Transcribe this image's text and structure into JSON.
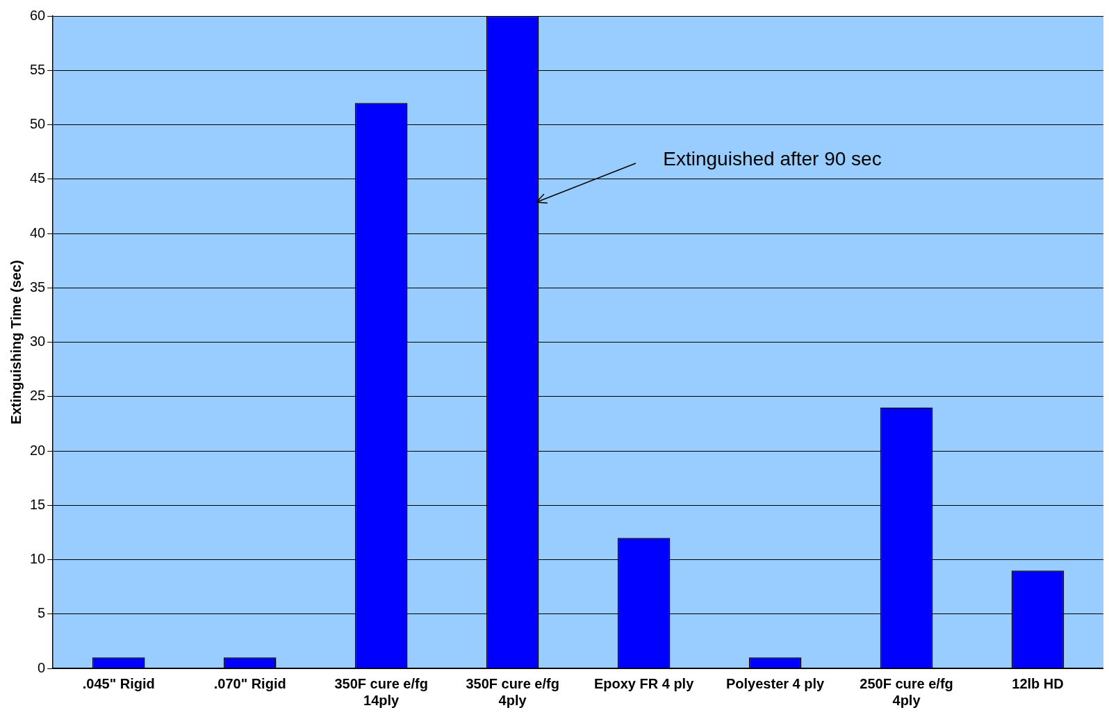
{
  "chart_data": {
    "type": "bar",
    "ylabel": "Extinguishing Time (sec)",
    "categories": [
      ".045\" Rigid",
      ".070\" Rigid",
      "350F cure e/fg 14ply",
      "350F cure e/fg 4ply",
      "Epoxy FR 4 ply",
      "Polyester 4 ply",
      "250F cure e/fg 4ply",
      "12lb HD"
    ],
    "values": [
      1,
      1,
      52,
      60,
      12,
      1,
      24,
      9
    ],
    "color": "#0000ff",
    "ylim": [
      0,
      60
    ],
    "yticks": [
      0,
      5,
      10,
      15,
      20,
      25,
      30,
      35,
      40,
      45,
      50,
      55,
      60
    ],
    "grid": "y",
    "legend": false,
    "annotations": [
      "Extinguished after 90 sec"
    ]
  }
}
